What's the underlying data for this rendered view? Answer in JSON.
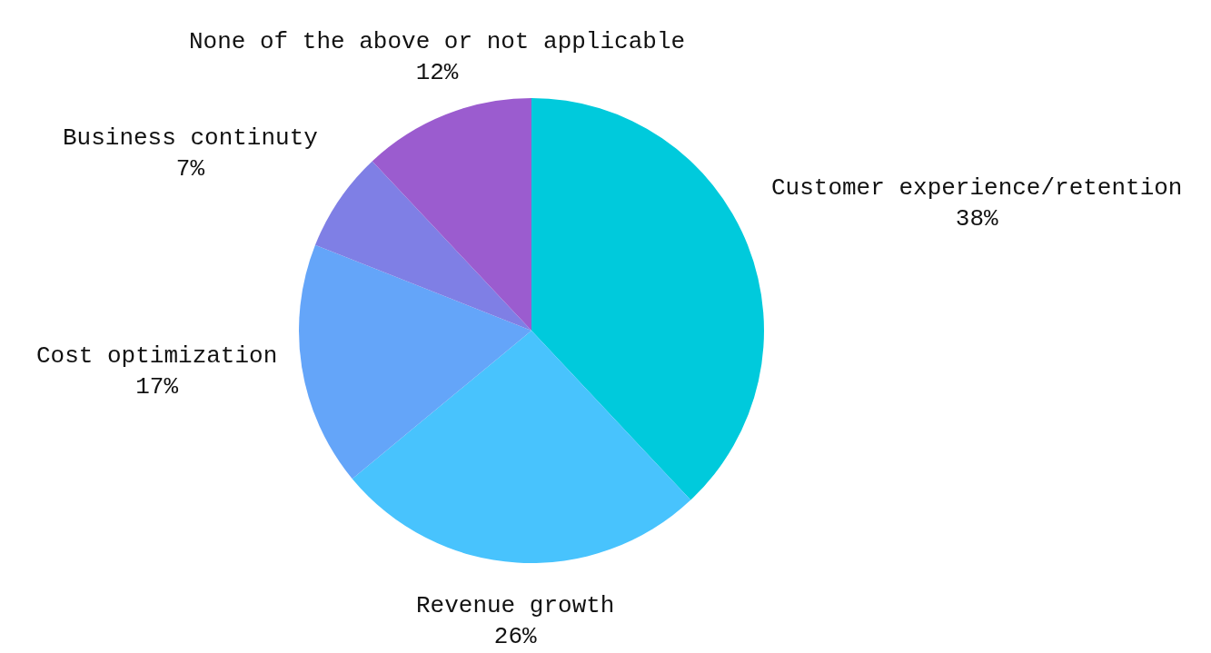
{
  "chart_data": {
    "type": "pie",
    "categories": [
      "Customer experience/retention",
      "Revenue growth",
      "Cost optimization",
      "Business continuty",
      "None of the above or not applicable"
    ],
    "values": [
      38,
      26,
      17,
      7,
      12
    ],
    "value_labels": [
      "38%",
      "26%",
      "17%",
      "7%",
      "12%"
    ],
    "colors": [
      "#00cadc",
      "#48c3fd",
      "#64a5f9",
      "#7f7fe5",
      "#9b5ccf"
    ]
  }
}
